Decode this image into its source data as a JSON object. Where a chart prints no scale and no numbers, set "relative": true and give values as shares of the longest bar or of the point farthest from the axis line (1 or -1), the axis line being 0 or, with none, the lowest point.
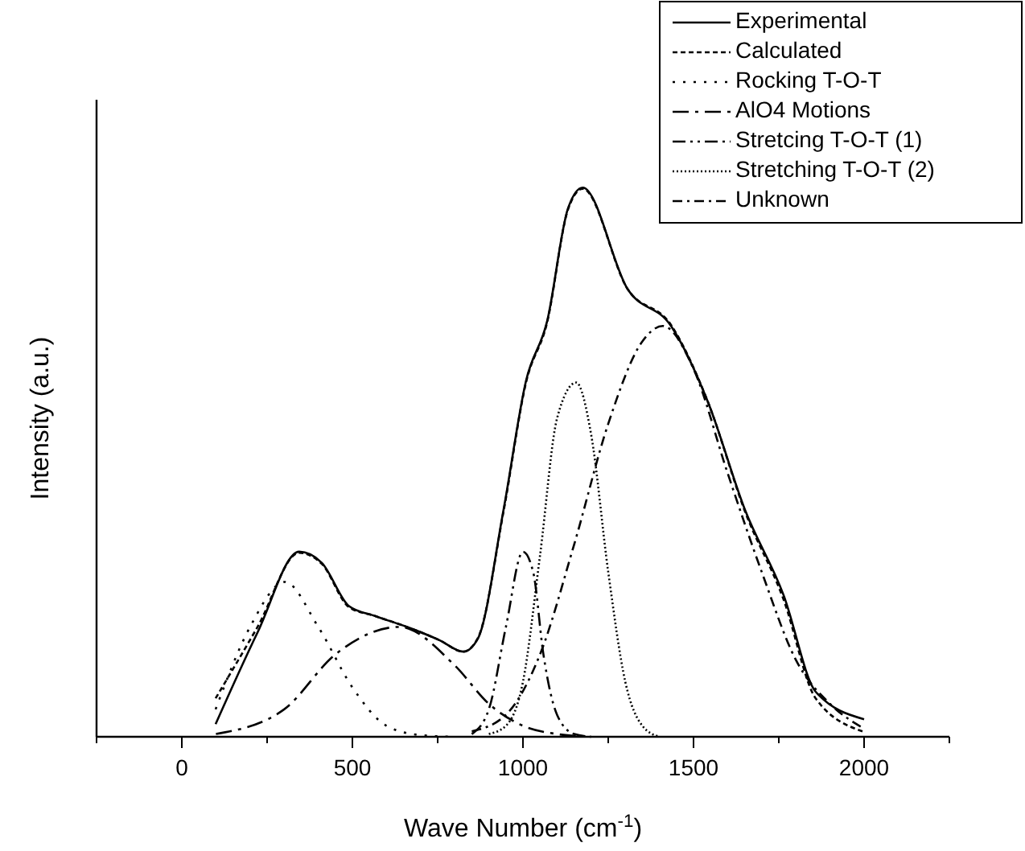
{
  "chart_data": {
    "type": "line",
    "relative": true,
    "xlabel": "Wave Number (cm$^{-1}$)",
    "ylabel": "Intensity (a.u.)",
    "xlim": [
      -250,
      2250
    ],
    "xticks": [
      {
        "value": -250,
        "label": null
      },
      0,
      {
        "value": 250,
        "label": null
      },
      500,
      {
        "value": 750,
        "label": null
      },
      1000,
      {
        "value": 1250,
        "label": null
      },
      1500,
      {
        "value": 1750,
        "label": null
      },
      2000,
      {
        "value": 2250,
        "label": null
      }
    ],
    "legend": "top right",
    "grid": false,
    "series": [
      {
        "name": "Experimental",
        "color": "#000000",
        "line_style": "solid",
        "x": [
          99,
          222,
          344,
          410,
          490,
          566,
          660,
          755,
          825,
          868,
          943,
          1009,
          1071,
          1132,
          1175,
          1307,
          1434,
          1542,
          1651,
          1764,
          1858,
          2000
        ],
        "values": [
          0.023,
          0.19,
          0.337,
          0.317,
          0.238,
          0.22,
          0.2,
          0.176,
          0.155,
          0.179,
          0.413,
          0.648,
          0.757,
          0.962,
          1.0,
          0.815,
          0.748,
          0.61,
          0.413,
          0.258,
          0.082,
          0.032
        ]
      },
      {
        "name": "Calculated",
        "color": "#000000",
        "line_style": "dashed",
        "x": [
          99,
          222,
          344,
          410,
          490,
          566,
          660,
          755,
          825,
          868,
          943,
          1009,
          1071,
          1132,
          1175,
          1307,
          1434,
          1542,
          1651,
          1764,
          1858,
          2000
        ],
        "values": [
          0.07,
          0.2,
          0.335,
          0.315,
          0.236,
          0.22,
          0.2,
          0.176,
          0.155,
          0.18,
          0.41,
          0.645,
          0.755,
          0.96,
          0.998,
          0.815,
          0.75,
          0.61,
          0.41,
          0.25,
          0.07,
          0.009
        ]
      },
      {
        "name": "Rocking T-O-T",
        "color": "#000000",
        "line_style": "dotted",
        "x": [
          99,
          200,
          302,
          400,
          500,
          600,
          700,
          800
        ],
        "values": [
          0.05,
          0.2,
          0.282,
          0.2,
          0.09,
          0.02,
          0.003,
          0
        ]
      },
      {
        "name": "AlO4 Motions",
        "color": "#000000",
        "line_style": "longdashdot",
        "x": [
          100,
          300,
          450,
          637,
          800,
          900,
          1000,
          1100,
          1200
        ],
        "values": [
          0.005,
          0.05,
          0.15,
          0.2,
          0.13,
          0.06,
          0.02,
          0.005,
          0
        ]
      },
      {
        "name": "Stretcing T-O-T (1)",
        "color": "#000000",
        "line_style": "dashdotdot",
        "x": [
          850,
          900,
          950,
          1000,
          1030,
          1060,
          1100,
          1150,
          1200
        ],
        "values": [
          0.005,
          0.05,
          0.2,
          0.337,
          0.3,
          0.15,
          0.04,
          0.005,
          0
        ]
      },
      {
        "name": "Stretching T-O-T (2)",
        "color": "#000000",
        "line_style": "finedotted",
        "x": [
          900,
          950,
          1000,
          1050,
          1100,
          1156,
          1200,
          1250,
          1300,
          1350,
          1400
        ],
        "values": [
          0.005,
          0.02,
          0.1,
          0.33,
          0.58,
          0.645,
          0.55,
          0.3,
          0.1,
          0.02,
          0
        ]
      },
      {
        "name": "Unknown",
        "color": "#000000",
        "line_style": "dashdot",
        "x": [
          850,
          950,
          1050,
          1150,
          1250,
          1350,
          1410,
          1500,
          1600,
          1700,
          1800,
          1900,
          2000
        ],
        "values": [
          0.01,
          0.04,
          0.15,
          0.35,
          0.57,
          0.72,
          0.748,
          0.67,
          0.48,
          0.3,
          0.14,
          0.06,
          0.015
        ]
      }
    ]
  }
}
